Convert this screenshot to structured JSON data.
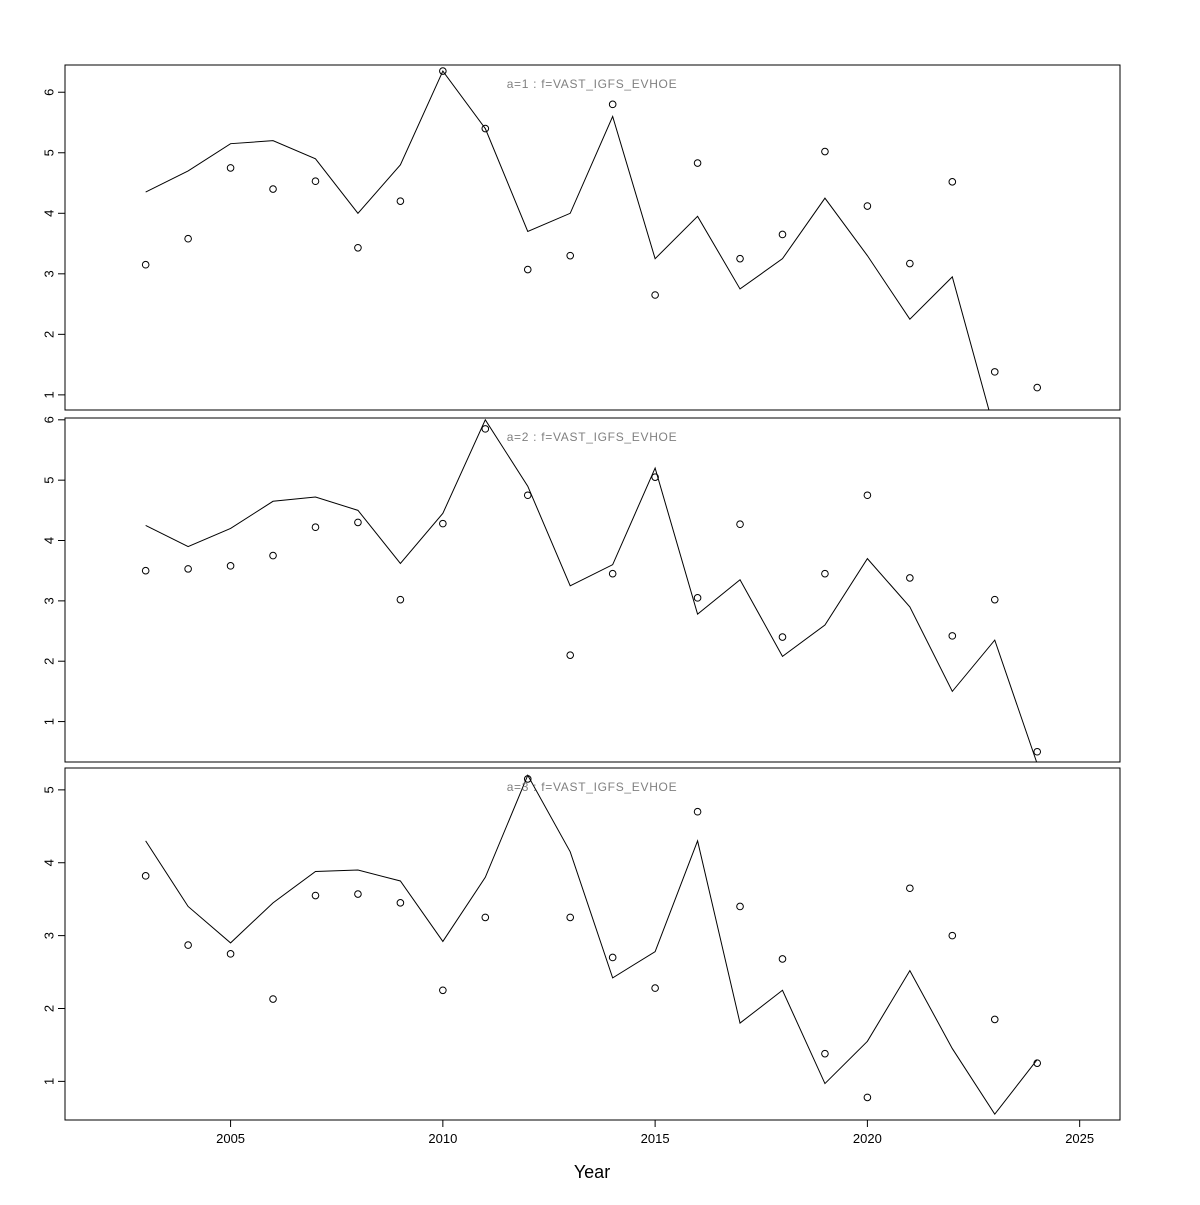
{
  "x_axis_label": "Year",
  "chart_data": [
    {
      "type": "line",
      "title": "a=1  :  f=VAST_IGFS_EVHOE",
      "x": [
        2003,
        2004,
        2005,
        2006,
        2007,
        2008,
        2009,
        2010,
        2011,
        2012,
        2013,
        2014,
        2015,
        2016,
        2017,
        2018,
        2019,
        2020,
        2021,
        2022,
        2023,
        2024
      ],
      "series": [
        {
          "name": "line",
          "type": "line",
          "values": [
            4.35,
            4.7,
            5.15,
            5.2,
            4.9,
            4.0,
            4.8,
            6.35,
            5.4,
            3.7,
            4.0,
            5.6,
            3.25,
            3.95,
            2.75,
            3.25,
            4.25,
            3.3,
            2.25,
            2.95,
            0.4,
            0.2
          ]
        },
        {
          "name": "points",
          "type": "scatter",
          "values": [
            3.15,
            3.58,
            4.75,
            4.4,
            4.53,
            3.43,
            4.2,
            6.35,
            5.4,
            3.07,
            3.3,
            5.8,
            2.65,
            4.83,
            3.25,
            3.65,
            5.02,
            4.12,
            3.17,
            4.52,
            1.38,
            1.12
          ]
        }
      ],
      "ylim": [
        0.75,
        6.45
      ],
      "yticks": [
        1,
        2,
        3,
        4,
        5,
        6
      ],
      "xlim": [
        2001.1,
        2025.95
      ],
      "xticks": [
        2005,
        2010,
        2015,
        2020,
        2025
      ],
      "grid": false,
      "legend": "none"
    },
    {
      "type": "line",
      "title": "a=2  :  f=VAST_IGFS_EVHOE",
      "x": [
        2003,
        2004,
        2005,
        2006,
        2007,
        2008,
        2009,
        2010,
        2011,
        2012,
        2013,
        2014,
        2015,
        2016,
        2017,
        2018,
        2019,
        2020,
        2021,
        2022,
        2023,
        2024
      ],
      "series": [
        {
          "name": "line",
          "type": "line",
          "values": [
            4.25,
            3.9,
            4.2,
            4.65,
            4.72,
            4.5,
            3.62,
            4.45,
            6.0,
            4.9,
            3.25,
            3.6,
            5.2,
            2.78,
            3.35,
            2.08,
            2.6,
            3.7,
            2.9,
            1.5,
            2.35,
            0.3
          ]
        },
        {
          "name": "points",
          "type": "scatter",
          "values": [
            3.5,
            3.53,
            3.58,
            3.75,
            4.22,
            4.3,
            3.02,
            4.28,
            5.85,
            4.75,
            2.1,
            3.45,
            5.05,
            3.05,
            4.27,
            2.4,
            3.45,
            4.75,
            3.38,
            2.42,
            3.02,
            0.5
          ]
        }
      ],
      "ylim": [
        0.33,
        6.03
      ],
      "yticks": [
        1,
        2,
        3,
        4,
        5,
        6
      ],
      "xlim": [
        2001.1,
        2025.95
      ],
      "xticks": [
        2005,
        2010,
        2015,
        2020,
        2025
      ],
      "grid": false,
      "legend": "none"
    },
    {
      "type": "line",
      "title": "a=3  :  f=VAST_IGFS_EVHOE",
      "x": [
        2003,
        2004,
        2005,
        2006,
        2007,
        2008,
        2009,
        2010,
        2011,
        2012,
        2013,
        2014,
        2015,
        2016,
        2017,
        2018,
        2019,
        2020,
        2021,
        2022,
        2023,
        2024
      ],
      "series": [
        {
          "name": "line",
          "type": "line",
          "values": [
            4.3,
            3.4,
            2.9,
            3.45,
            3.88,
            3.9,
            3.75,
            2.92,
            3.8,
            5.2,
            4.15,
            2.42,
            2.78,
            4.3,
            1.8,
            2.25,
            0.97,
            1.55,
            2.52,
            1.45,
            0.55,
            1.3
          ]
        },
        {
          "name": "points",
          "type": "scatter",
          "values": [
            3.82,
            2.87,
            2.75,
            2.13,
            3.55,
            3.57,
            3.45,
            2.25,
            3.25,
            5.15,
            3.25,
            2.7,
            2.28,
            4.7,
            3.4,
            2.68,
            1.38,
            0.78,
            3.65,
            3.0,
            1.85,
            1.25
          ]
        }
      ],
      "ylim": [
        0.47,
        5.3
      ],
      "yticks": [
        1,
        2,
        3,
        4,
        5
      ],
      "xlim": [
        2001.1,
        2025.95
      ],
      "xticks": [
        2005,
        2010,
        2015,
        2020,
        2025
      ],
      "grid": false,
      "legend": "none"
    }
  ]
}
